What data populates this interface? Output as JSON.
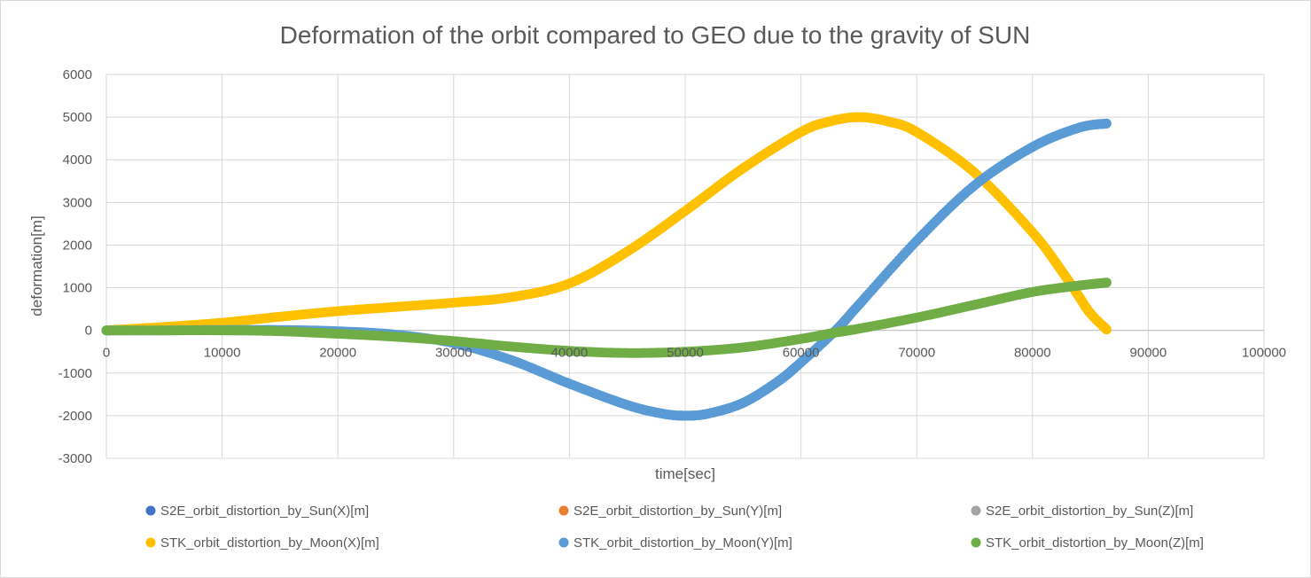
{
  "chart_data": {
    "type": "scatter",
    "title": "Deformation of the orbit compared to GEO due to the gravity of SUN",
    "xlabel": "time[sec]",
    "ylabel": "deformation[m]",
    "xlim": [
      0,
      100000
    ],
    "ylim": [
      -3000,
      6000
    ],
    "x_ticks": [
      0,
      10000,
      20000,
      30000,
      40000,
      50000,
      60000,
      70000,
      80000,
      90000,
      100000
    ],
    "y_ticks": [
      -3000,
      -2000,
      -1000,
      0,
      1000,
      2000,
      3000,
      4000,
      5000,
      6000
    ],
    "grid": true,
    "legend_position": "bottom",
    "series": [
      {
        "name": "S2E_orbit_distortion_by_Sun(X)[m]",
        "color": "#4472c4",
        "x": [],
        "y": []
      },
      {
        "name": "S2E_orbit_distortion_by_Sun(Y)[m]",
        "color": "#ed7d31",
        "x": [],
        "y": []
      },
      {
        "name": "S2E_orbit_distortion_by_Sun(Z)[m]",
        "color": "#a5a5a5",
        "x": [],
        "y": []
      },
      {
        "name": "STK_orbit_distortion_by_Moon(X)[m]",
        "color": "#ffc000",
        "x": [
          0,
          5000,
          10000,
          15000,
          20000,
          25000,
          30000,
          35000,
          40000,
          45000,
          50000,
          55000,
          60000,
          62500,
          65000,
          67500,
          70000,
          75000,
          80000,
          82500,
          84000,
          85000,
          86400
        ],
        "y": [
          0,
          80,
          180,
          320,
          450,
          550,
          650,
          780,
          1100,
          1850,
          2800,
          3800,
          4650,
          4900,
          5000,
          4900,
          4650,
          3700,
          2300,
          1400,
          800,
          400,
          20
        ]
      },
      {
        "name": "STK_orbit_distortion_by_Moon(Y)[m]",
        "color": "#5b9bd5",
        "x": [
          0,
          5000,
          10000,
          15000,
          20000,
          25000,
          30000,
          35000,
          40000,
          45000,
          48000,
          50000,
          52000,
          55000,
          58000,
          60000,
          63000,
          65000,
          70000,
          75000,
          80000,
          84000,
          86400
        ],
        "y": [
          0,
          0,
          10,
          10,
          -20,
          -100,
          -300,
          -700,
          -1250,
          -1750,
          -1950,
          -2000,
          -1950,
          -1700,
          -1200,
          -750,
          0,
          600,
          2100,
          3400,
          4300,
          4750,
          4850
        ]
      },
      {
        "name": "STK_orbit_distortion_by_Moon(Z)[m]",
        "color": "#70ad47",
        "x": [
          0,
          5000,
          10000,
          15000,
          20000,
          25000,
          30000,
          35000,
          40000,
          45000,
          50000,
          55000,
          60000,
          63000,
          65000,
          70000,
          75000,
          80000,
          84000,
          86400
        ],
        "y": [
          0,
          0,
          0,
          -20,
          -80,
          -150,
          -250,
          -380,
          -480,
          -530,
          -500,
          -400,
          -200,
          -50,
          40,
          300,
          600,
          900,
          1050,
          1120
        ]
      }
    ]
  }
}
